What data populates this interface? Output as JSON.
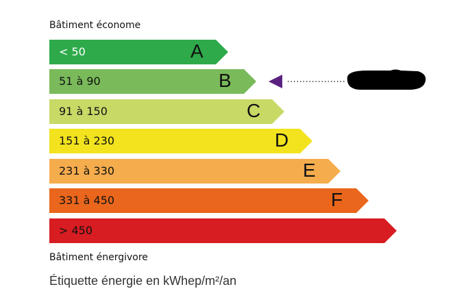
{
  "top_label": "Bâtiment économe",
  "bottom_label": "Bâtiment énergivore",
  "caption": "Étiquette énergie en kWhep/m²/an",
  "classes": [
    {
      "letter": "A",
      "range": "< 50",
      "color": "#2eaa4a",
      "text_color": "#ffffff"
    },
    {
      "letter": "B",
      "range": "51 à 90",
      "color": "#7aba5a",
      "text_color": "#111111"
    },
    {
      "letter": "C",
      "range": "91 à 150",
      "color": "#c8d966",
      "text_color": "#111111"
    },
    {
      "letter": "D",
      "range": "151 à 230",
      "color": "#f2e31e",
      "text_color": "#111111"
    },
    {
      "letter": "E",
      "range": "231 à 330",
      "color": "#f5ac4d",
      "text_color": "#111111"
    },
    {
      "letter": "F",
      "range": "331 à 450",
      "color": "#e9661c",
      "text_color": "#111111"
    },
    {
      "letter": "",
      "range": "> 450",
      "color": "#d71c22",
      "text_color": "#111111"
    }
  ],
  "indicator": {
    "class": "B",
    "color": "#5b2181",
    "value_redacted": true
  }
}
